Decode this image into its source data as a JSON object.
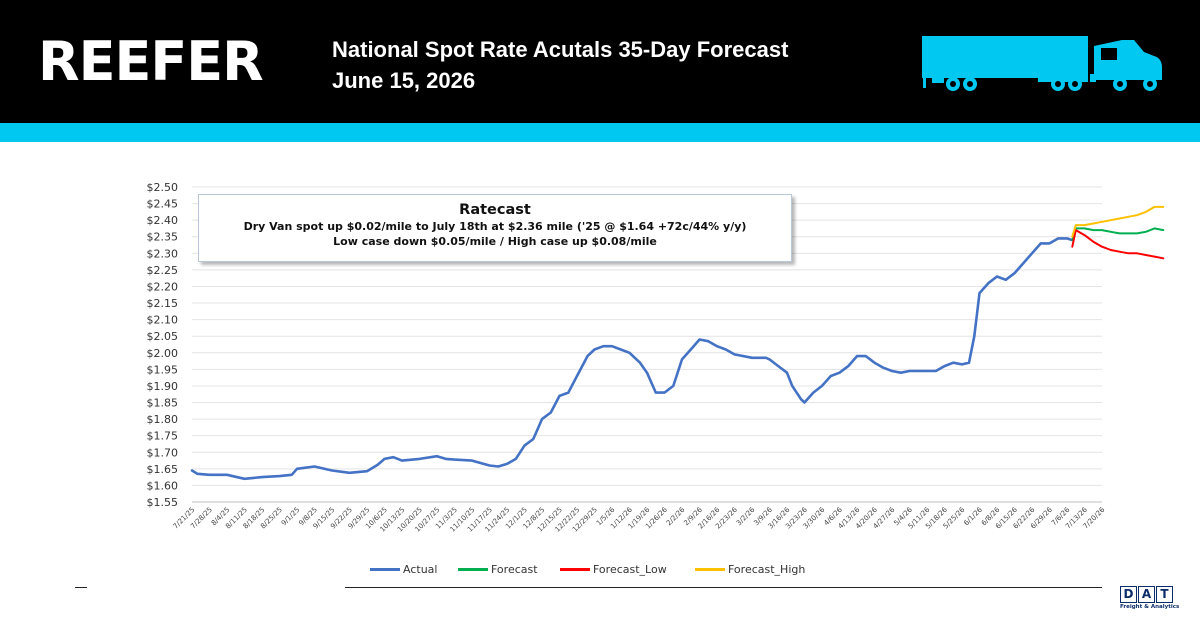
{
  "header": {
    "brand": "REEFER",
    "title": "National Spot Rate Acutals 35-Day Forecast",
    "date": "June 15, 2026"
  },
  "ratecast": {
    "title": "Ratecast",
    "line1": "Dry Van spot up $0.02/mile to July 18th at $2.36 mile ('25 @ $1.64 +72c/44% y/y)",
    "line2": "Low case down $0.05/mile  / High case up $0.08/mile"
  },
  "logo": {
    "letters": [
      "D",
      "A",
      "T"
    ],
    "sub": "Freight & Analytics"
  },
  "colors": {
    "header_bg": "#000000",
    "stripe": "#00c8f0",
    "actual": "#4472c4",
    "forecast": "#00b050",
    "forecast_low": "#ff0000",
    "forecast_high": "#ffc000"
  },
  "chart_data": {
    "type": "line",
    "y_range": [
      1.55,
      2.5
    ],
    "y_step": 0.05,
    "y_tick_format": "$0.00",
    "grid": "horizontal",
    "legend_position": "bottom",
    "x_tick_labels": [
      "7/21/25",
      "7/28/25",
      "8/4/25",
      "8/11/25",
      "8/18/25",
      "8/25/25",
      "9/1/25",
      "9/8/25",
      "9/15/25",
      "9/22/25",
      "9/29/25",
      "10/6/25",
      "10/13/25",
      "10/20/25",
      "10/27/25",
      "11/3/25",
      "11/10/25",
      "11/17/25",
      "11/24/25",
      "12/1/25",
      "12/8/25",
      "12/15/25",
      "12/22/25",
      "12/29/25",
      "1/5/26",
      "1/12/26",
      "1/19/26",
      "1/26/26",
      "2/2/26",
      "2/9/26",
      "2/16/26",
      "2/23/26",
      "3/2/26",
      "3/9/26",
      "3/16/26",
      "3/23/26",
      "3/30/26",
      "4/6/26",
      "4/13/26",
      "4/20/26",
      "4/27/26",
      "5/4/26",
      "5/11/26",
      "5/18/26",
      "5/25/26",
      "6/1/26",
      "6/8/26",
      "6/15/26",
      "6/22/26",
      "6/29/26",
      "7/6/26",
      "7/13/26",
      "7/20/26"
    ],
    "series": [
      {
        "name": "Actual",
        "color": "#4472c4",
        "values": [
          [
            0,
            1.645
          ],
          [
            0.3,
            1.635
          ],
          [
            1,
            1.632
          ],
          [
            2,
            1.632
          ],
          [
            3,
            1.62
          ],
          [
            4,
            1.625
          ],
          [
            5,
            1.628
          ],
          [
            5.7,
            1.632
          ],
          [
            6,
            1.65
          ],
          [
            7,
            1.657
          ],
          [
            8,
            1.645
          ],
          [
            9,
            1.638
          ],
          [
            10,
            1.643
          ],
          [
            10.6,
            1.662
          ],
          [
            11,
            1.68
          ],
          [
            11.5,
            1.685
          ],
          [
            12,
            1.675
          ],
          [
            13,
            1.68
          ],
          [
            14,
            1.688
          ],
          [
            14.5,
            1.68
          ],
          [
            15,
            1.678
          ],
          [
            16,
            1.675
          ],
          [
            17,
            1.66
          ],
          [
            17.5,
            1.657
          ],
          [
            18,
            1.665
          ],
          [
            18.5,
            1.68
          ],
          [
            19,
            1.72
          ],
          [
            19.5,
            1.74
          ],
          [
            20,
            1.8
          ],
          [
            20.5,
            1.82
          ],
          [
            21,
            1.87
          ],
          [
            21.5,
            1.88
          ],
          [
            22,
            1.93
          ],
          [
            22.6,
            1.99
          ],
          [
            23,
            2.01
          ],
          [
            23.5,
            2.02
          ],
          [
            24,
            2.02
          ],
          [
            24.5,
            2.01
          ],
          [
            25,
            2.0
          ],
          [
            25.6,
            1.97
          ],
          [
            26,
            1.94
          ],
          [
            26.5,
            1.88
          ],
          [
            27,
            1.88
          ],
          [
            27.5,
            1.9
          ],
          [
            28,
            1.98
          ],
          [
            28.5,
            2.01
          ],
          [
            29,
            2.04
          ],
          [
            29.5,
            2.035
          ],
          [
            30,
            2.02
          ],
          [
            30.5,
            2.01
          ],
          [
            31,
            1.995
          ],
          [
            32,
            1.985
          ],
          [
            32.8,
            1.985
          ],
          [
            33,
            1.98
          ],
          [
            33.5,
            1.96
          ],
          [
            34,
            1.94
          ],
          [
            34.3,
            1.9
          ],
          [
            34.8,
            1.86
          ],
          [
            35,
            1.85
          ],
          [
            35.5,
            1.88
          ],
          [
            36,
            1.9
          ],
          [
            36.5,
            1.93
          ],
          [
            37,
            1.94
          ],
          [
            37.5,
            1.96
          ],
          [
            38,
            1.99
          ],
          [
            38.5,
            1.99
          ],
          [
            39,
            1.97
          ],
          [
            39.5,
            1.955
          ],
          [
            40,
            1.945
          ],
          [
            40.5,
            1.94
          ],
          [
            41,
            1.945
          ],
          [
            42,
            1.945
          ],
          [
            42.5,
            1.945
          ],
          [
            43,
            1.96
          ],
          [
            43.5,
            1.97
          ],
          [
            44,
            1.965
          ],
          [
            44.4,
            1.97
          ],
          [
            44.7,
            2.05
          ],
          [
            45,
            2.18
          ],
          [
            45.5,
            2.21
          ],
          [
            46,
            2.23
          ],
          [
            46.5,
            2.22
          ],
          [
            47,
            2.24
          ],
          [
            47.5,
            2.27
          ],
          [
            48,
            2.3
          ],
          [
            48.5,
            2.33
          ],
          [
            49,
            2.33
          ],
          [
            49.5,
            2.345
          ],
          [
            50,
            2.345
          ],
          [
            50.3,
            2.34
          ]
        ]
      },
      {
        "name": "Forecast",
        "color": "#00b050",
        "values": [
          [
            50.3,
            2.34
          ],
          [
            50.5,
            2.375
          ],
          [
            51,
            2.375
          ],
          [
            51.5,
            2.37
          ],
          [
            52,
            2.37
          ],
          [
            52.5,
            2.365
          ],
          [
            53,
            2.36
          ],
          [
            53.5,
            2.36
          ],
          [
            54,
            2.36
          ],
          [
            54.5,
            2.365
          ],
          [
            55,
            2.375
          ],
          [
            55.5,
            2.37
          ]
        ]
      },
      {
        "name": "Forecast_Low",
        "color": "#ff0000",
        "values": [
          [
            50.3,
            2.32
          ],
          [
            50.5,
            2.37
          ],
          [
            51,
            2.355
          ],
          [
            51.5,
            2.335
          ],
          [
            52,
            2.32
          ],
          [
            52.5,
            2.31
          ],
          [
            53,
            2.305
          ],
          [
            53.5,
            2.3
          ],
          [
            54,
            2.3
          ],
          [
            54.5,
            2.295
          ],
          [
            55,
            2.29
          ],
          [
            55.5,
            2.285
          ]
        ]
      },
      {
        "name": "Forecast_High",
        "color": "#ffc000",
        "values": [
          [
            50.3,
            2.35
          ],
          [
            50.5,
            2.385
          ],
          [
            51,
            2.385
          ],
          [
            51.5,
            2.39
          ],
          [
            52,
            2.395
          ],
          [
            52.5,
            2.4
          ],
          [
            53,
            2.405
          ],
          [
            53.5,
            2.41
          ],
          [
            54,
            2.415
          ],
          [
            54.5,
            2.425
          ],
          [
            55,
            2.44
          ],
          [
            55.5,
            2.44
          ]
        ]
      }
    ]
  }
}
